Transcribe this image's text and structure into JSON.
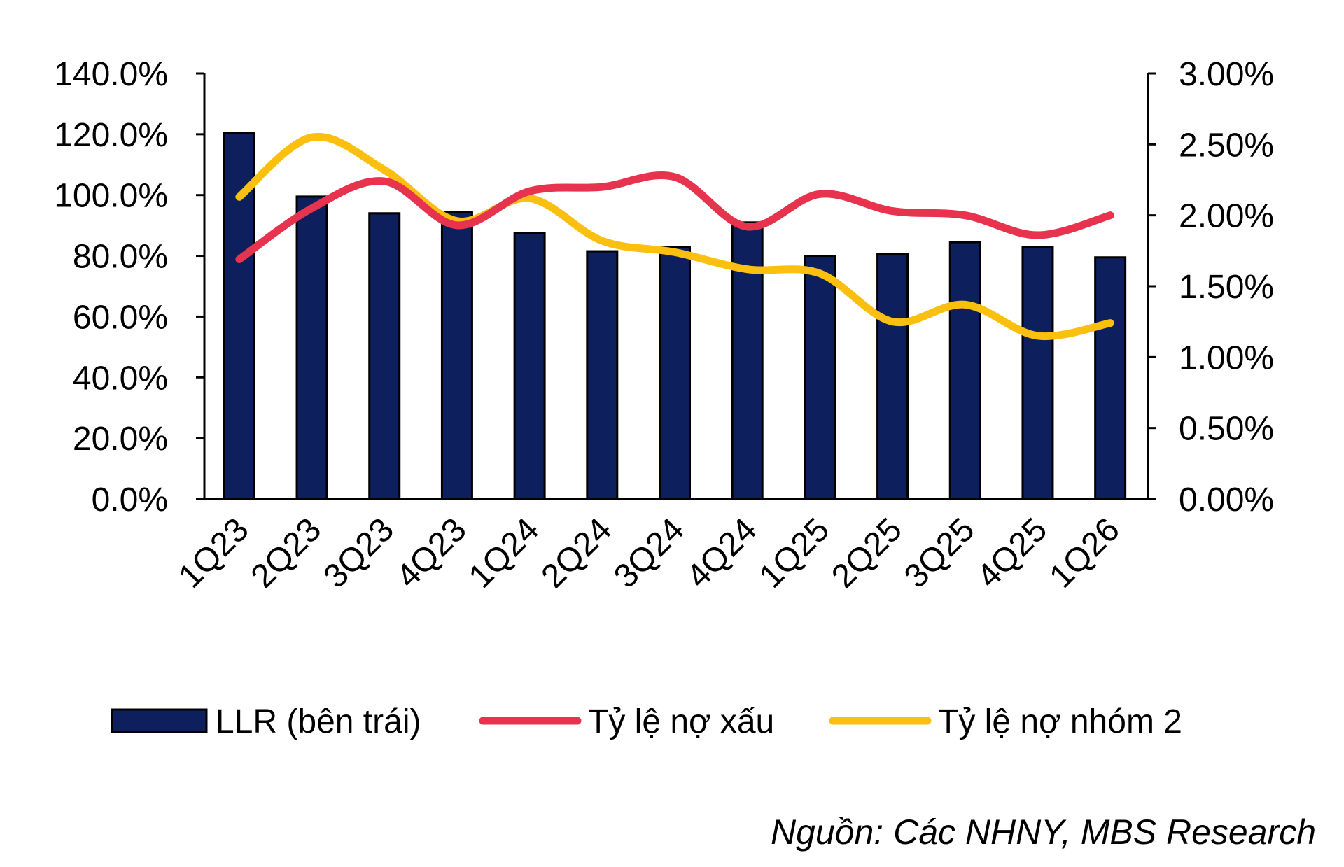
{
  "chart_data": {
    "type": "bar",
    "categories": [
      "1Q23",
      "2Q23",
      "3Q23",
      "4Q23",
      "1Q24",
      "2Q24",
      "3Q24",
      "4Q24",
      "1Q25",
      "2Q25",
      "3Q25",
      "4Q25",
      "1Q26"
    ],
    "y_left": {
      "ylim": [
        0,
        140
      ],
      "ticks": [
        "0.0%",
        "20.0%",
        "40.0%",
        "60.0%",
        "80.0%",
        "100.0%",
        "120.0%",
        "140.0%"
      ]
    },
    "y_right": {
      "ylim": [
        0,
        3
      ],
      "ticks": [
        "0.00%",
        "0.50%",
        "1.00%",
        "1.50%",
        "2.00%",
        "2.50%",
        "3.00%"
      ]
    },
    "series": [
      {
        "name": "LLR (bên trái)",
        "type": "bar",
        "axis": "left",
        "color": "#0d1f5c",
        "values": [
          120.5,
          99.5,
          94.0,
          94.5,
          87.5,
          81.5,
          83.0,
          91.0,
          80.0,
          80.5,
          84.5,
          83.0,
          79.5
        ]
      },
      {
        "name": "Tỷ lệ nợ xấu",
        "type": "line",
        "axis": "right",
        "color": "#e8334f",
        "values": [
          1.69,
          2.05,
          2.24,
          1.93,
          2.17,
          2.2,
          2.27,
          1.92,
          2.15,
          2.03,
          2.0,
          1.86,
          2.0
        ]
      },
      {
        "name": "Tỷ lệ nợ nhóm 2",
        "type": "line",
        "axis": "right",
        "color": "#fbbf10",
        "values": [
          2.13,
          2.55,
          2.32,
          1.96,
          2.12,
          1.82,
          1.74,
          1.62,
          1.59,
          1.25,
          1.37,
          1.15,
          1.24
        ]
      }
    ],
    "legend_position": "bottom",
    "grid": false
  },
  "source": "Nguồn: Các NHNY, MBS Research"
}
